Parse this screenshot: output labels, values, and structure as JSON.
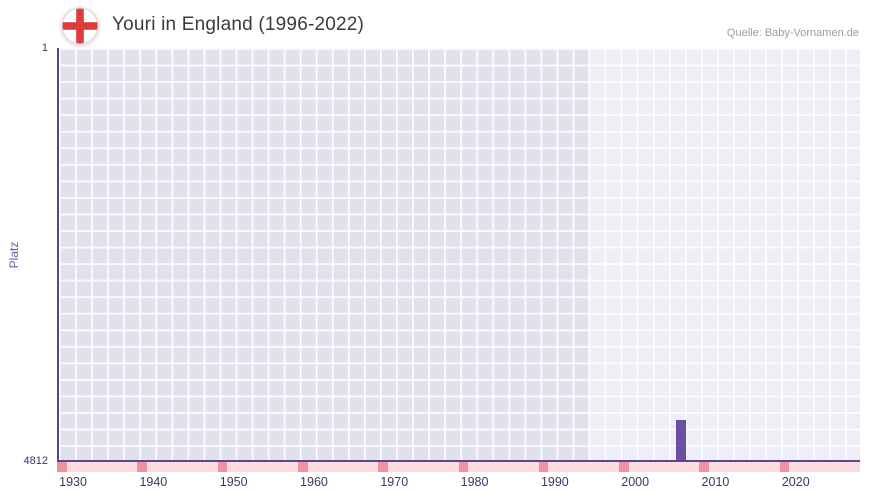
{
  "header": {
    "title": "Youri in England (1996-2022)",
    "source": "Quelle: Baby-Vornamen.de"
  },
  "chart_data": {
    "type": "bar",
    "title": "Youri in England (1996-2022)",
    "xlabel": "",
    "ylabel": "Platz",
    "y_axis_inverted": true,
    "ylim": [
      1,
      4812
    ],
    "y_ticks": [
      "1",
      "4812"
    ],
    "x_range": [
      1928,
      2028
    ],
    "x_ticks": [
      "1930",
      "1940",
      "1950",
      "1960",
      "1970",
      "1980",
      "1990",
      "2000",
      "2010",
      "2020"
    ],
    "grid": true,
    "data_region_years": [
      1994,
      2028
    ],
    "bars": [
      {
        "year": 2005,
        "rank": 4350
      }
    ],
    "bar_width_years": 1.25,
    "strip_mark_years": [
      1928,
      1938,
      1948,
      1958,
      1968,
      1978,
      1988,
      1998,
      2008,
      2018,
      2028
    ],
    "strip_mark_width_years": 1.2,
    "colors": {
      "bar": "#6b4fa2",
      "axis": "#5a4794",
      "plot_bg": "#e3e0ee",
      "grid_line": "rgba(255,255,255,0.78)",
      "data_region_overlay": "rgba(255,255,255,0.42)",
      "tick_label": "#3d3663",
      "ylabel_color": "#6a5da5",
      "strip_bg": "#fadce1",
      "strip_mark": "#ef93a0",
      "title_color": "#3b3b3b",
      "source_color": "#9c9c9c",
      "flag_red": "#dd3c3c",
      "flag_ring": "#e4dee4"
    }
  }
}
